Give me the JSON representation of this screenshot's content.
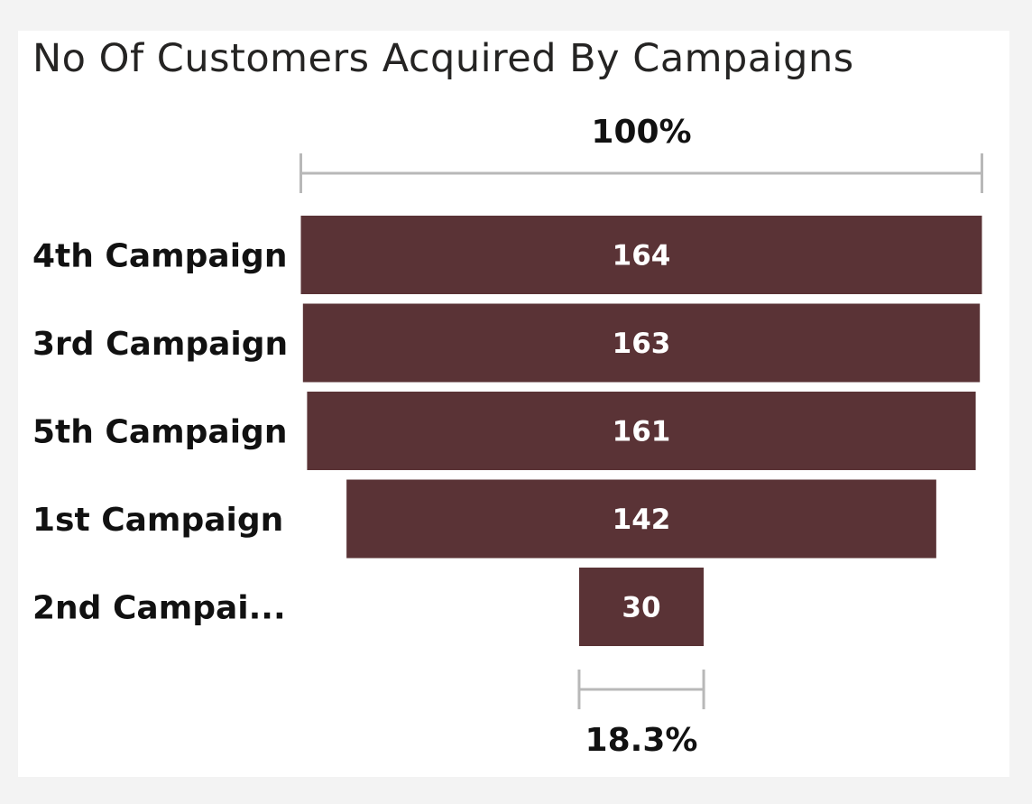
{
  "chart_data": {
    "type": "funnel",
    "title": "No Of Customers Acquired By Campaigns",
    "categories": [
      "4th Campaign",
      "3rd Campaign",
      "5th Campaign",
      "1st Campaign",
      "2nd Campai..."
    ],
    "values": [
      164,
      163,
      161,
      142,
      30
    ],
    "data_labels": [
      "164",
      "163",
      "161",
      "142",
      "30"
    ],
    "top_percent_label": "100%",
    "bottom_percent_label": "18.3%",
    "bar_color": "#5a3336",
    "bracket_color": "#b8b8b8"
  }
}
